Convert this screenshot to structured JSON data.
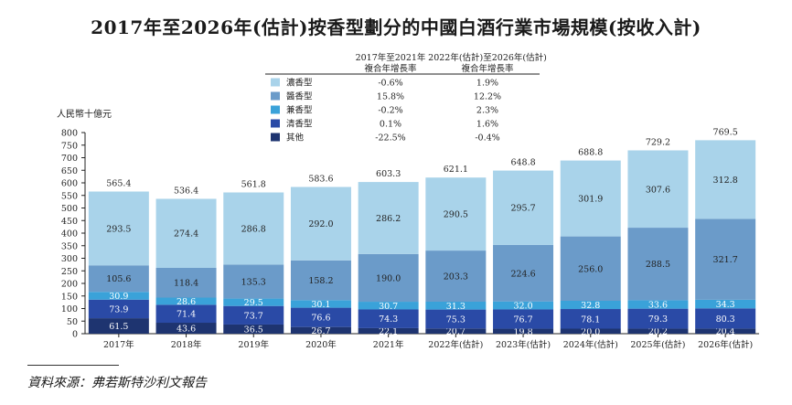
{
  "title": "2017年至2026年(估計)按香型劃分的中國白酒行業市場規模(按收入計)",
  "source": "資料來源：弗若斯特沙利文報告",
  "colors": {
    "nongxiang": "#a9d3ea",
    "jiangxiang": "#6b9bc9",
    "jianxiang": "#3aa2d9",
    "qingxiang": "#2a4aa6",
    "other": "#1e3470",
    "frame": "#222222"
  },
  "chart_data": {
    "type": "bar",
    "stacked": true,
    "ylabel": "人民幣十億元",
    "ylim": [
      0,
      800
    ],
    "yticks": [
      0,
      50,
      100,
      150,
      200,
      250,
      300,
      350,
      400,
      450,
      500,
      550,
      600,
      650,
      700,
      750,
      800
    ],
    "grid": false,
    "categories": [
      "2017年",
      "2018年",
      "2019年",
      "2020年",
      "2021年",
      "2022年(估計)",
      "2023年(估計)",
      "2024年(估計)",
      "2025年(估計)",
      "2026年(估計)"
    ],
    "totals": [
      "565.4",
      "536.4",
      "561.8",
      "583.6",
      "603.3",
      "621.1",
      "648.8",
      "688.8",
      "729.2",
      "769.5"
    ],
    "series": [
      {
        "name": "其他",
        "color": "#1e3470",
        "values": [
          61.5,
          43.6,
          36.5,
          26.7,
          22.1,
          20.7,
          19.8,
          20.0,
          20.2,
          20.4
        ],
        "labels": [
          "61.5",
          "43.6",
          "36.5",
          "26.7",
          "22.1",
          "20.7",
          "19.8",
          "20.0",
          "20.2",
          "20.4"
        ]
      },
      {
        "name": "清香型",
        "color": "#2a4aa6",
        "values": [
          73.9,
          71.4,
          73.7,
          76.6,
          74.3,
          75.3,
          76.7,
          78.1,
          79.3,
          80.3
        ],
        "labels": [
          "73.9",
          "71.4",
          "73.7",
          "76.6",
          "74.3",
          "75.3",
          "76.7",
          "78.1",
          "79.3",
          "80.3"
        ]
      },
      {
        "name": "兼香型",
        "color": "#3aa2d9",
        "values": [
          30.9,
          28.6,
          29.5,
          30.1,
          30.7,
          31.3,
          32.0,
          32.8,
          33.6,
          34.3
        ],
        "labels": [
          "30.9",
          "28.6",
          "29.5",
          "30.1",
          "30.7",
          "31.3",
          "32.0",
          "32.8",
          "33.6",
          "34.3"
        ]
      },
      {
        "name": "醬香型",
        "color": "#6b9bc9",
        "values": [
          105.6,
          118.4,
          135.3,
          158.2,
          190.0,
          203.3,
          224.6,
          256.0,
          288.5,
          321.7
        ],
        "labels": [
          "105.6",
          "118.4",
          "135.3",
          "158.2",
          "190.0",
          "203.3",
          "224.6",
          "256.0",
          "288.5",
          "321.7"
        ]
      },
      {
        "name": "濃香型",
        "color": "#a9d3ea",
        "values": [
          293.5,
          274.4,
          286.8,
          292.0,
          286.2,
          290.5,
          295.7,
          301.9,
          307.6,
          312.8
        ],
        "labels": [
          "293.5",
          "274.4",
          "286.8",
          "292.0",
          "286.2",
          "290.5",
          "295.7",
          "301.9",
          "307.6",
          "312.8"
        ]
      }
    ],
    "legend": {
      "placement": "top-center",
      "col_headers": [
        "2017年至2021年\n複合年增長率",
        "2022年(估計)至2026年(估計)\n複合年增長率"
      ],
      "rows": [
        {
          "name": "濃香型",
          "color": "#a9d3ea",
          "cagr1": "-0.6%",
          "cagr2": "1.9%"
        },
        {
          "name": "醬香型",
          "color": "#6b9bc9",
          "cagr1": "15.8%",
          "cagr2": "12.2%"
        },
        {
          "name": "兼香型",
          "color": "#3aa2d9",
          "cagr1": "-0.2%",
          "cagr2": "2.3%"
        },
        {
          "name": "清香型",
          "color": "#2a4aa6",
          "cagr1": "0.1%",
          "cagr2": "1.6%"
        },
        {
          "name": "其他",
          "color": "#1e3470",
          "cagr1": "-22.5%",
          "cagr2": "-0.4%"
        }
      ]
    }
  }
}
